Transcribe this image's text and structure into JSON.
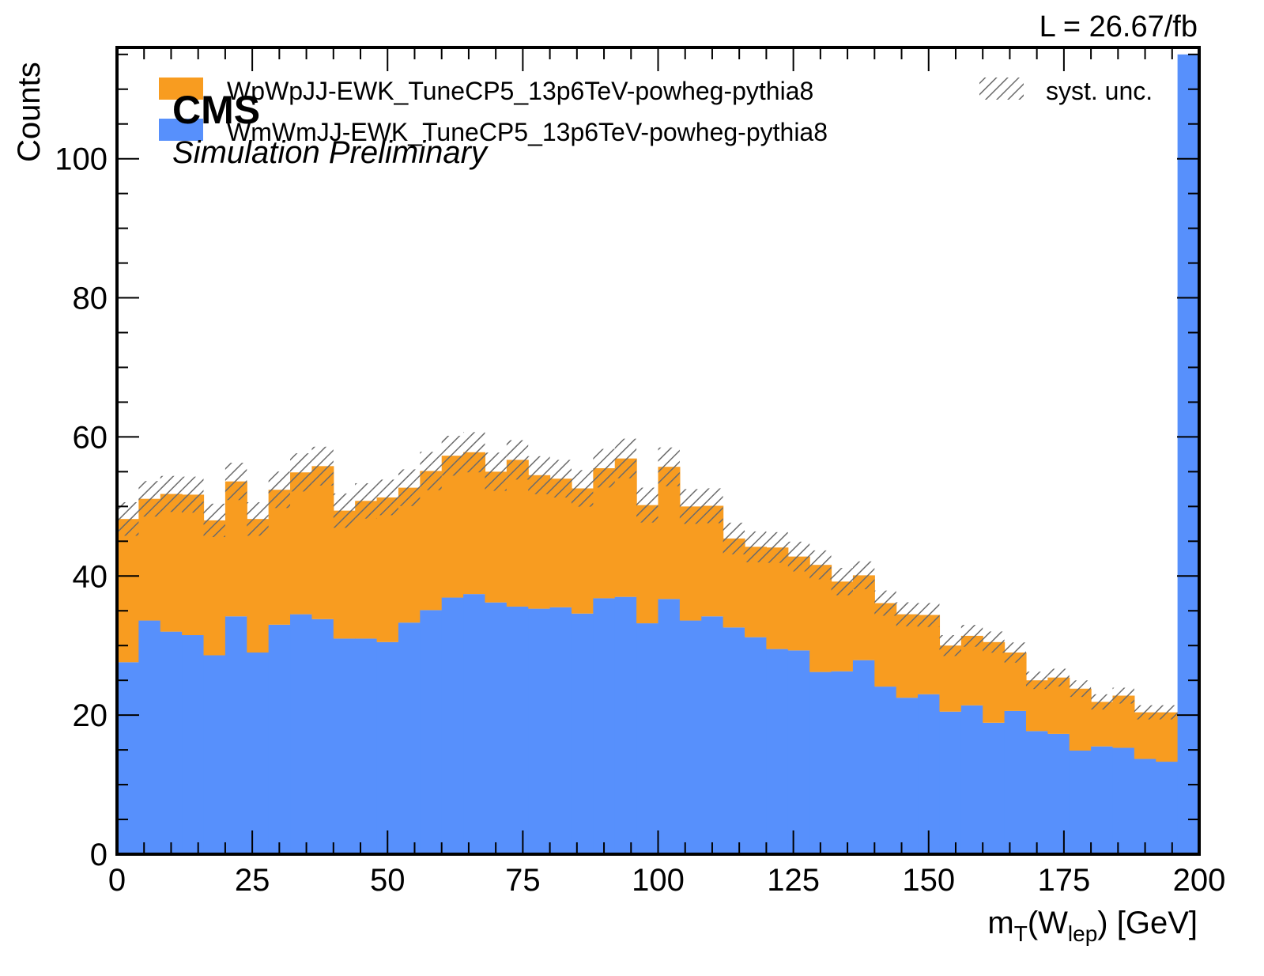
{
  "chart_data": {
    "type": "bar",
    "stacked": true,
    "histogram": true,
    "xlim": [
      0,
      200
    ],
    "ylim": [
      0,
      116
    ],
    "bin_edges": [
      0,
      4,
      8,
      12,
      16,
      20,
      24,
      28,
      32,
      36,
      40,
      44,
      48,
      52,
      56,
      60,
      64,
      68,
      72,
      76,
      80,
      84,
      88,
      92,
      96,
      100,
      104,
      108,
      112,
      116,
      120,
      124,
      128,
      132,
      136,
      140,
      144,
      148,
      152,
      156,
      160,
      164,
      168,
      172,
      176,
      180,
      184,
      188,
      192,
      196,
      200
    ],
    "xlabel_main": "m",
    "xlabel_sub1": "T",
    "xlabel_mid": "(W",
    "xlabel_sub2": "lep",
    "xlabel_end": ") [GeV]",
    "ylabel": "Counts",
    "x_ticks": [
      "0",
      "25",
      "50",
      "75",
      "100",
      "125",
      "150",
      "175",
      "200"
    ],
    "y_ticks": [
      "0",
      "20",
      "40",
      "60",
      "80",
      "100"
    ],
    "experiment": "CMS",
    "subtitle": "Simulation Preliminary",
    "luminosity": "L = 26.67/fb",
    "legend_position": "top",
    "series": [
      {
        "name": "WmWmJJ-EWK_TuneCP5_13p6TeV-powheg-pythia8",
        "color": "#5790fc",
        "values": [
          27.6,
          33.6,
          32.0,
          31.5,
          28.6,
          34.2,
          29.0,
          33.0,
          34.5,
          33.8,
          31.0,
          31.0,
          30.5,
          33.3,
          35.1,
          36.9,
          37.4,
          36.2,
          35.6,
          35.3,
          35.5,
          34.6,
          36.8,
          37.0,
          33.2,
          36.7,
          33.6,
          34.2,
          32.6,
          31.2,
          29.5,
          29.3,
          26.2,
          26.3,
          27.9,
          24.1,
          22.5,
          23.0,
          20.5,
          21.4,
          18.9,
          20.6,
          17.7,
          17.3,
          14.9,
          15.5,
          15.3,
          13.7,
          13.3,
          115.0
        ]
      },
      {
        "name": "WpWpJJ-EWK_TuneCP5_13p6TeV-powheg-pythia8",
        "color": "#f89c20",
        "values": [
          20.6,
          17.5,
          19.8,
          20.2,
          19.4,
          19.4,
          19.2,
          19.4,
          20.4,
          22.0,
          18.4,
          19.8,
          20.8,
          19.4,
          20.0,
          20.4,
          20.4,
          18.8,
          21.1,
          19.2,
          18.5,
          18.0,
          18.7,
          19.9,
          17.0,
          19.0,
          16.4,
          15.9,
          12.8,
          13.0,
          14.6,
          13.5,
          15.4,
          12.9,
          12.2,
          12.0,
          12.0,
          11.4,
          9.5,
          10.0,
          11.6,
          8.4,
          7.3,
          8.1,
          8.9,
          6.4,
          7.5,
          6.7,
          7.1,
          0.0
        ]
      }
    ],
    "uncertainty": {
      "name": "syst. unc.",
      "relative": 0.05
    }
  }
}
